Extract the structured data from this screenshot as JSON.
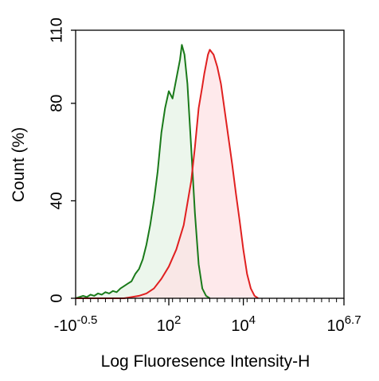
{
  "chart_data": {
    "type": "area",
    "xlabel": "Log Fluoresence Intensity-H",
    "ylabel": "Count  (%)",
    "xscale": "log (biexponential)",
    "xlim": [
      -0.5,
      6.7
    ],
    "ylim": [
      0,
      110
    ],
    "x_tick_labels": [
      {
        "base": "-10",
        "exp": "-0.5",
        "pos": -0.5
      },
      {
        "base": "10",
        "exp": "2",
        "pos": 2
      },
      {
        "base": "10",
        "exp": "4",
        "pos": 4
      },
      {
        "base": "10",
        "exp": "6.7",
        "pos": 6.7
      }
    ],
    "y_ticks": [
      0,
      40,
      80,
      110
    ],
    "grid": false,
    "legend": "none",
    "series": [
      {
        "color": "#1a7a1a",
        "fill": "#e6f3e6",
        "points": [
          [
            -0.5,
            0
          ],
          [
            -0.4,
            0.5
          ],
          [
            -0.3,
            1
          ],
          [
            -0.2,
            0.5
          ],
          [
            -0.1,
            1.5
          ],
          [
            0,
            1
          ],
          [
            0.1,
            2
          ],
          [
            0.2,
            1.5
          ],
          [
            0.3,
            2.5
          ],
          [
            0.4,
            2
          ],
          [
            0.5,
            3
          ],
          [
            0.6,
            2.5
          ],
          [
            0.7,
            4
          ],
          [
            0.8,
            5
          ],
          [
            0.9,
            6
          ],
          [
            1.0,
            7
          ],
          [
            1.1,
            10
          ],
          [
            1.2,
            12
          ],
          [
            1.3,
            16
          ],
          [
            1.4,
            22
          ],
          [
            1.5,
            30
          ],
          [
            1.6,
            40
          ],
          [
            1.7,
            52
          ],
          [
            1.8,
            68
          ],
          [
            1.9,
            78
          ],
          [
            2.0,
            85
          ],
          [
            2.1,
            82
          ],
          [
            2.2,
            90
          ],
          [
            2.3,
            98
          ],
          [
            2.35,
            104
          ],
          [
            2.42,
            100
          ],
          [
            2.5,
            88
          ],
          [
            2.6,
            62
          ],
          [
            2.7,
            35
          ],
          [
            2.8,
            14
          ],
          [
            2.9,
            4
          ],
          [
            3.0,
            1
          ],
          [
            3.1,
            0
          ]
        ]
      },
      {
        "color": "#e02020",
        "fill": "#fde2e4",
        "points": [
          [
            -0.5,
            0
          ],
          [
            0.8,
            0
          ],
          [
            1.0,
            0.5
          ],
          [
            1.2,
            1
          ],
          [
            1.4,
            2
          ],
          [
            1.6,
            4
          ],
          [
            1.8,
            8
          ],
          [
            2.0,
            13
          ],
          [
            2.2,
            20
          ],
          [
            2.4,
            30
          ],
          [
            2.6,
            48
          ],
          [
            2.7,
            62
          ],
          [
            2.8,
            78
          ],
          [
            2.9,
            87
          ],
          [
            2.95,
            92
          ],
          [
            3.05,
            100
          ],
          [
            3.1,
            102
          ],
          [
            3.2,
            100
          ],
          [
            3.3,
            95
          ],
          [
            3.4,
            88
          ],
          [
            3.5,
            77
          ],
          [
            3.6,
            66
          ],
          [
            3.7,
            55
          ],
          [
            3.8,
            43
          ],
          [
            3.9,
            32
          ],
          [
            4.0,
            20
          ],
          [
            4.1,
            10
          ],
          [
            4.2,
            4
          ],
          [
            4.3,
            1
          ],
          [
            4.4,
            0
          ]
        ]
      }
    ]
  }
}
